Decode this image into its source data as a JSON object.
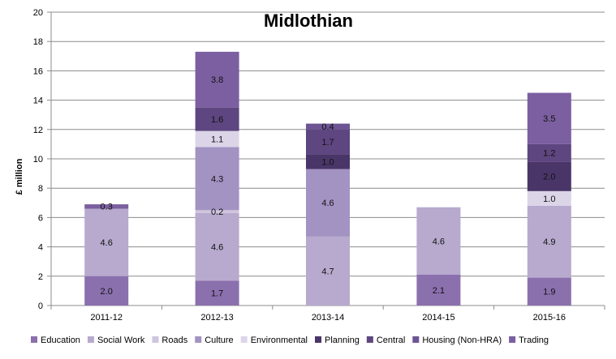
{
  "chart_data": {
    "type": "bar",
    "stacked": true,
    "title": "Midlothian",
    "xlabel": "",
    "ylabel": "£ million",
    "ylim": [
      0,
      20
    ],
    "yticks": [
      0,
      2,
      4,
      6,
      8,
      10,
      12,
      14,
      16,
      18,
      20
    ],
    "grid": true,
    "legend_position": "bottom",
    "categories": [
      "2011-12",
      "2012-13",
      "2013-14",
      "2014-15",
      "2015-16"
    ],
    "series": [
      {
        "name": "Education",
        "color": "#8B70AE",
        "values": [
          2.0,
          1.7,
          0,
          2.1,
          1.9
        ]
      },
      {
        "name": "Social Work",
        "color": "#B7AACE",
        "values": [
          4.6,
          4.6,
          4.7,
          4.6,
          4.9
        ]
      },
      {
        "name": "Roads",
        "color": "#CFC5DE",
        "values": [
          0,
          0.2,
          0,
          0,
          0
        ]
      },
      {
        "name": "Culture",
        "color": "#A393C3",
        "values": [
          0,
          4.3,
          4.6,
          0,
          0
        ]
      },
      {
        "name": "Environmental",
        "color": "#DCD5E8",
        "values": [
          0,
          1.1,
          0,
          0,
          1.0
        ]
      },
      {
        "name": "Planning",
        "color": "#4A3568",
        "values": [
          0,
          0,
          1.0,
          0,
          2.0
        ]
      },
      {
        "name": "Central",
        "color": "#5E4680",
        "values": [
          0,
          1.6,
          1.7,
          0,
          1.2
        ]
      },
      {
        "name": "Housing (Non-HRA)",
        "color": "#6D5494",
        "values": [
          0,
          0,
          0.4,
          0,
          0
        ]
      },
      {
        "name": "Trading",
        "color": "#7B5FA0",
        "values": [
          0.3,
          3.8,
          0,
          0,
          3.5
        ]
      }
    ]
  }
}
